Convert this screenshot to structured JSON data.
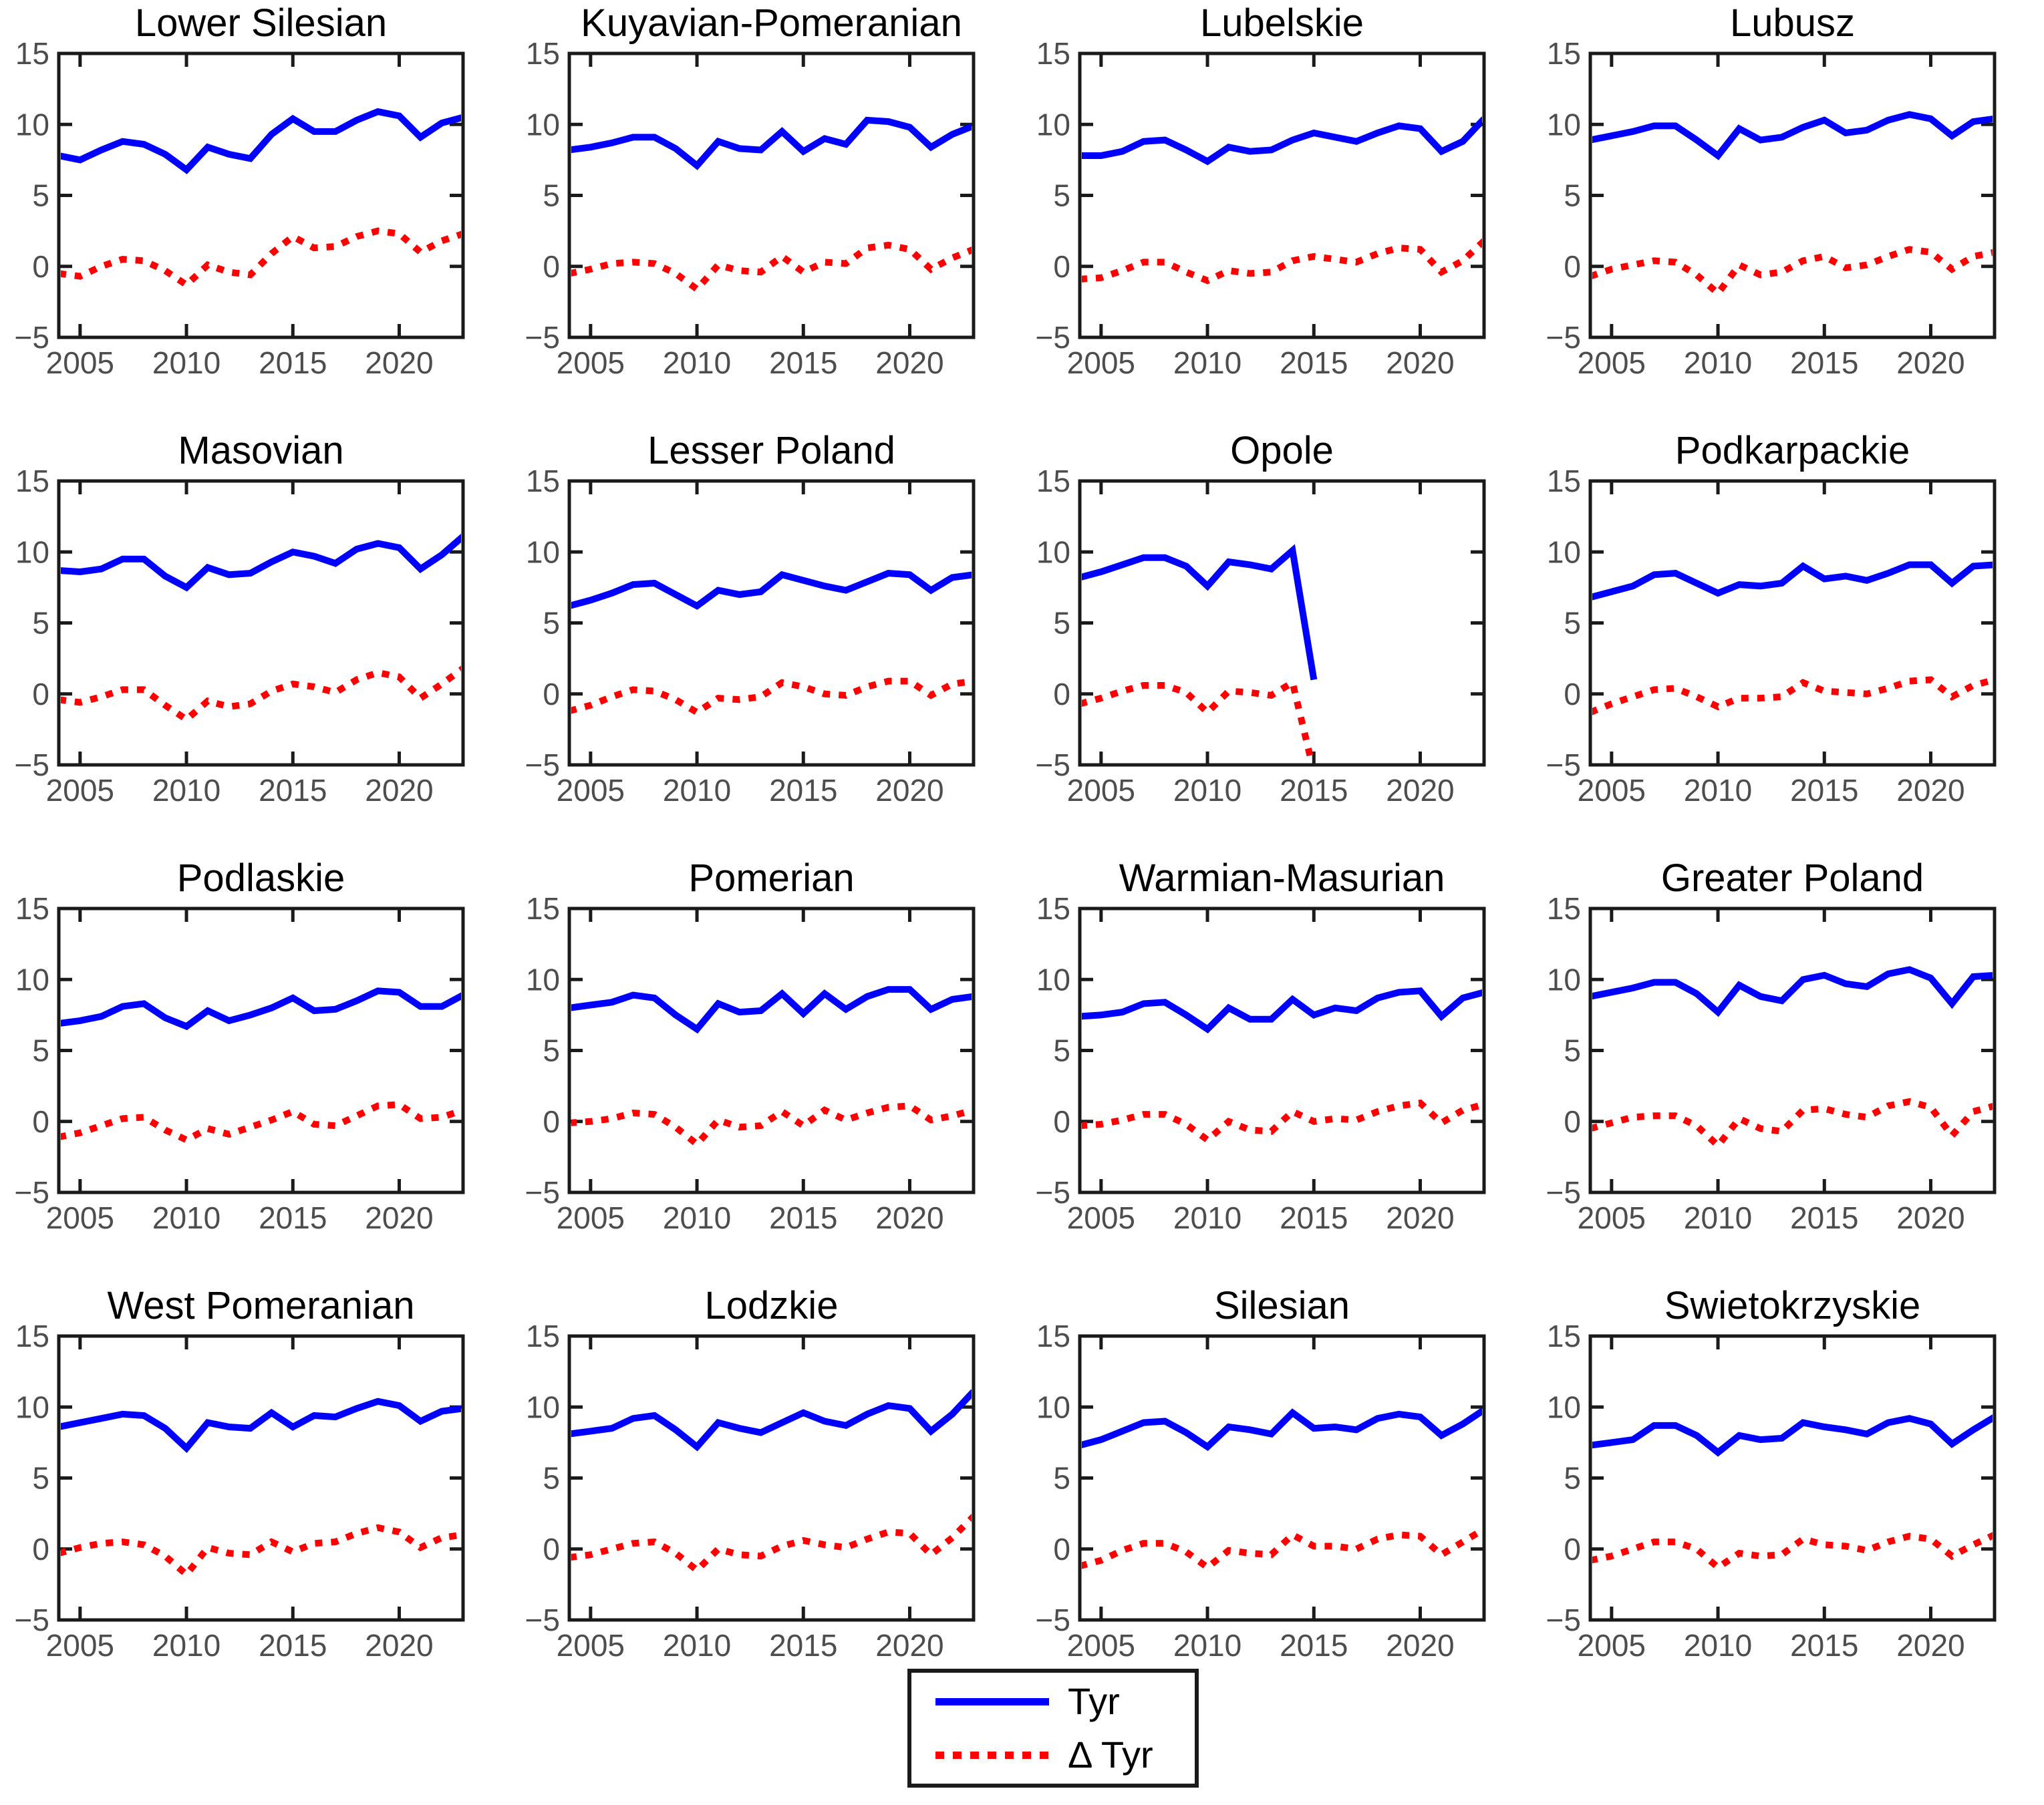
{
  "page": {
    "background": "#ffffff"
  },
  "legend": {
    "items": [
      {
        "label": "Tyr",
        "color": "#0000ff",
        "style": "solid"
      },
      {
        "label": "Δ Tyr",
        "color": "#ff0000",
        "style": "dotted"
      }
    ]
  },
  "chart_data": {
    "type": "line",
    "grid": false,
    "legend_position": "bottom-center",
    "ylim": [
      -5,
      15
    ],
    "ytick_labels": [
      "15",
      "10",
      "5",
      "0",
      "−5"
    ],
    "yticks": [
      15,
      10,
      5,
      0,
      -5
    ],
    "xlim": [
      2004,
      2023
    ],
    "xticks": [
      2005,
      2010,
      2015,
      2020
    ],
    "series_names": [
      "Tyr",
      "Δ Tyr"
    ],
    "colors": {
      "tyr": "#0000ff",
      "dtyr": "#ff0000",
      "axis": "#1a1a1a",
      "tick_label": "#4d4d4d",
      "title": "#000000"
    },
    "panels": [
      {
        "title": "Lower Silesian",
        "start_year": 2004,
        "tyr": [
          7.8,
          7.5,
          8.2,
          8.8,
          8.6,
          7.9,
          6.8,
          8.4,
          7.9,
          7.6,
          9.3,
          10.4,
          9.5,
          9.5,
          10.3,
          10.9,
          10.6,
          9.1,
          10.1,
          10.5
        ],
        "dtyr": [
          -0.5,
          -0.7,
          0.0,
          0.5,
          0.4,
          -0.3,
          -1.3,
          0.1,
          -0.4,
          -0.6,
          0.9,
          2.1,
          1.3,
          1.4,
          2.1,
          2.5,
          2.3,
          1.0,
          1.8,
          2.3
        ]
      },
      {
        "title": "Kuyavian-Pomeranian",
        "start_year": 2004,
        "tyr": [
          8.2,
          8.4,
          8.7,
          9.1,
          9.1,
          8.3,
          7.1,
          8.8,
          8.3,
          8.2,
          9.5,
          8.1,
          9.0,
          8.6,
          10.3,
          10.2,
          9.8,
          8.4,
          9.3,
          9.9
        ],
        "dtyr": [
          -0.5,
          -0.2,
          0.2,
          0.3,
          0.2,
          -0.5,
          -1.6,
          0.1,
          -0.3,
          -0.4,
          0.7,
          -0.4,
          0.3,
          0.2,
          1.3,
          1.5,
          1.2,
          -0.2,
          0.6,
          1.2
        ]
      },
      {
        "title": "Lubelskie",
        "start_year": 2004,
        "tyr": [
          7.8,
          7.8,
          8.1,
          8.8,
          8.9,
          8.2,
          7.4,
          8.4,
          8.1,
          8.2,
          8.9,
          9.4,
          9.1,
          8.8,
          9.4,
          9.9,
          9.7,
          8.1,
          8.8,
          10.4
        ],
        "dtyr": [
          -0.9,
          -0.8,
          -0.3,
          0.3,
          0.3,
          -0.4,
          -1.0,
          -0.3,
          -0.5,
          -0.4,
          0.4,
          0.7,
          0.5,
          0.3,
          0.9,
          1.3,
          1.2,
          -0.4,
          0.4,
          1.8
        ]
      },
      {
        "title": "Lubusz",
        "start_year": 2004,
        "tyr": [
          8.9,
          9.2,
          9.5,
          9.9,
          9.9,
          8.9,
          7.8,
          9.7,
          8.9,
          9.1,
          9.8,
          10.3,
          9.4,
          9.6,
          10.3,
          10.7,
          10.4,
          9.2,
          10.2,
          10.4
        ],
        "dtyr": [
          -0.7,
          -0.2,
          0.1,
          0.4,
          0.3,
          -0.6,
          -1.9,
          0.1,
          -0.6,
          -0.4,
          0.4,
          0.7,
          -0.1,
          0.1,
          0.7,
          1.2,
          1.0,
          -0.2,
          0.7,
          1.0
        ]
      },
      {
        "title": "Masovian",
        "start_year": 2004,
        "tyr": [
          8.7,
          8.6,
          8.8,
          9.5,
          9.5,
          8.3,
          7.5,
          8.9,
          8.4,
          8.5,
          9.3,
          10.0,
          9.7,
          9.2,
          10.2,
          10.6,
          10.3,
          8.8,
          9.8,
          11.1
        ],
        "dtyr": [
          -0.4,
          -0.6,
          -0.2,
          0.3,
          0.3,
          -0.8,
          -1.8,
          -0.5,
          -0.9,
          -0.7,
          0.2,
          0.7,
          0.5,
          0.1,
          1.0,
          1.5,
          1.2,
          -0.3,
          0.7,
          1.8
        ]
      },
      {
        "title": "Lesser Poland",
        "start_year": 2004,
        "tyr": [
          6.2,
          6.6,
          7.1,
          7.7,
          7.8,
          7.0,
          6.2,
          7.3,
          7.0,
          7.2,
          8.4,
          8.0,
          7.6,
          7.3,
          7.9,
          8.5,
          8.4,
          7.3,
          8.2,
          8.4
        ],
        "dtyr": [
          -1.2,
          -0.8,
          -0.2,
          0.3,
          0.2,
          -0.4,
          -1.3,
          -0.3,
          -0.4,
          -0.2,
          0.8,
          0.5,
          0.0,
          -0.1,
          0.5,
          0.9,
          0.9,
          -0.1,
          0.7,
          0.9
        ]
      },
      {
        "title": "Opole",
        "start_year": 2004,
        "tyr": [
          8.2,
          8.6,
          9.1,
          9.6,
          9.6,
          9.0,
          7.6,
          9.3,
          9.1,
          8.8,
          10.1,
          1.0
        ],
        "dtyr": [
          -0.7,
          -0.3,
          0.2,
          0.6,
          0.6,
          0.1,
          -1.3,
          0.2,
          0.1,
          -0.1,
          0.8,
          -5.5
        ]
      },
      {
        "title": "Podkarpackie",
        "start_year": 2004,
        "tyr": [
          6.8,
          7.2,
          7.6,
          8.4,
          8.5,
          7.8,
          7.1,
          7.7,
          7.6,
          7.8,
          9.0,
          8.1,
          8.3,
          8.0,
          8.5,
          9.1,
          9.1,
          7.8,
          9.0,
          9.1
        ],
        "dtyr": [
          -1.3,
          -0.7,
          -0.2,
          0.3,
          0.4,
          -0.2,
          -0.9,
          -0.3,
          -0.3,
          -0.2,
          0.8,
          0.2,
          0.1,
          0.0,
          0.4,
          0.9,
          1.0,
          -0.2,
          0.6,
          1.0
        ]
      },
      {
        "title": "Podlaskie",
        "start_year": 2004,
        "tyr": [
          6.9,
          7.1,
          7.4,
          8.1,
          8.3,
          7.3,
          6.7,
          7.8,
          7.1,
          7.5,
          8.0,
          8.7,
          7.8,
          7.9,
          8.5,
          9.2,
          9.1,
          8.1,
          8.1,
          8.9
        ],
        "dtyr": [
          -1.1,
          -0.8,
          -0.3,
          0.2,
          0.3,
          -0.6,
          -1.3,
          -0.5,
          -0.9,
          -0.4,
          0.1,
          0.7,
          -0.2,
          -0.3,
          0.4,
          1.1,
          1.2,
          0.2,
          0.3,
          0.8
        ]
      },
      {
        "title": "Pomerian",
        "start_year": 2004,
        "tyr": [
          8.0,
          8.2,
          8.4,
          8.9,
          8.7,
          7.5,
          6.5,
          8.3,
          7.7,
          7.8,
          9.0,
          7.6,
          9.0,
          7.9,
          8.8,
          9.3,
          9.3,
          7.9,
          8.6,
          8.8
        ],
        "dtyr": [
          -0.1,
          0.0,
          0.2,
          0.6,
          0.5,
          -0.4,
          -1.6,
          0.1,
          -0.4,
          -0.3,
          0.7,
          -0.3,
          0.8,
          0.1,
          0.6,
          1.0,
          1.1,
          0.1,
          0.4,
          0.8
        ]
      },
      {
        "title": "Warmian-Masurian",
        "start_year": 2004,
        "tyr": [
          7.4,
          7.5,
          7.7,
          8.3,
          8.4,
          7.5,
          6.5,
          8.0,
          7.2,
          7.2,
          8.6,
          7.5,
          8.0,
          7.8,
          8.7,
          9.1,
          9.2,
          7.4,
          8.7,
          9.1
        ],
        "dtyr": [
          -0.3,
          -0.2,
          0.1,
          0.5,
          0.5,
          -0.2,
          -1.3,
          0.0,
          -0.6,
          -0.7,
          0.7,
          0.0,
          0.2,
          0.1,
          0.7,
          1.1,
          1.3,
          -0.1,
          0.8,
          1.2
        ]
      },
      {
        "title": "Greater Poland",
        "start_year": 2004,
        "tyr": [
          8.8,
          9.1,
          9.4,
          9.8,
          9.8,
          9.0,
          7.7,
          9.6,
          8.8,
          8.5,
          10.0,
          10.3,
          9.7,
          9.5,
          10.4,
          10.7,
          10.1,
          8.3,
          10.2,
          10.3
        ],
        "dtyr": [
          -0.5,
          -0.1,
          0.3,
          0.4,
          0.4,
          -0.3,
          -1.7,
          0.2,
          -0.5,
          -0.7,
          0.8,
          0.9,
          0.5,
          0.3,
          1.1,
          1.4,
          1.0,
          -1.0,
          0.7,
          1.1
        ]
      },
      {
        "title": "West Pomeranian",
        "start_year": 2004,
        "tyr": [
          8.6,
          8.9,
          9.2,
          9.5,
          9.4,
          8.5,
          7.1,
          8.9,
          8.6,
          8.5,
          9.6,
          8.6,
          9.4,
          9.3,
          9.9,
          10.4,
          10.1,
          9.0,
          9.7,
          9.9
        ],
        "dtyr": [
          -0.3,
          0.1,
          0.4,
          0.5,
          0.3,
          -0.5,
          -1.8,
          0.1,
          -0.3,
          -0.4,
          0.5,
          -0.2,
          0.4,
          0.5,
          1.1,
          1.5,
          1.2,
          0.1,
          0.8,
          1.0
        ]
      },
      {
        "title": "Lodzkie",
        "start_year": 2004,
        "tyr": [
          8.1,
          8.3,
          8.5,
          9.2,
          9.4,
          8.4,
          7.2,
          8.9,
          8.5,
          8.2,
          8.9,
          9.6,
          9.0,
          8.7,
          9.5,
          10.1,
          9.9,
          8.3,
          9.5,
          11.1
        ],
        "dtyr": [
          -0.6,
          -0.4,
          0.0,
          0.4,
          0.5,
          -0.3,
          -1.5,
          0.0,
          -0.4,
          -0.5,
          0.2,
          0.6,
          0.3,
          0.1,
          0.7,
          1.2,
          1.1,
          -0.4,
          0.8,
          2.3
        ]
      },
      {
        "title": "Silesian",
        "start_year": 2004,
        "tyr": [
          7.3,
          7.7,
          8.3,
          8.9,
          9.0,
          8.2,
          7.2,
          8.6,
          8.4,
          8.1,
          9.6,
          8.5,
          8.6,
          8.4,
          9.2,
          9.5,
          9.3,
          8.0,
          8.8,
          9.8
        ],
        "dtyr": [
          -1.2,
          -0.8,
          -0.1,
          0.4,
          0.4,
          -0.2,
          -1.3,
          -0.1,
          -0.3,
          -0.4,
          1.0,
          0.2,
          0.2,
          0.0,
          0.7,
          1.0,
          0.9,
          -0.4,
          0.5,
          1.4
        ]
      },
      {
        "title": "Swietokrzyskie",
        "start_year": 2004,
        "tyr": [
          7.3,
          7.5,
          7.7,
          8.7,
          8.7,
          8.0,
          6.8,
          8.0,
          7.7,
          7.8,
          8.9,
          8.6,
          8.4,
          8.1,
          8.9,
          9.2,
          8.8,
          7.4,
          8.4,
          9.3
        ],
        "dtyr": [
          -0.8,
          -0.5,
          0.0,
          0.5,
          0.5,
          0.0,
          -1.3,
          -0.3,
          -0.5,
          -0.4,
          0.7,
          0.3,
          0.2,
          -0.1,
          0.5,
          0.9,
          0.7,
          -0.5,
          0.3,
          1.0
        ]
      }
    ]
  }
}
